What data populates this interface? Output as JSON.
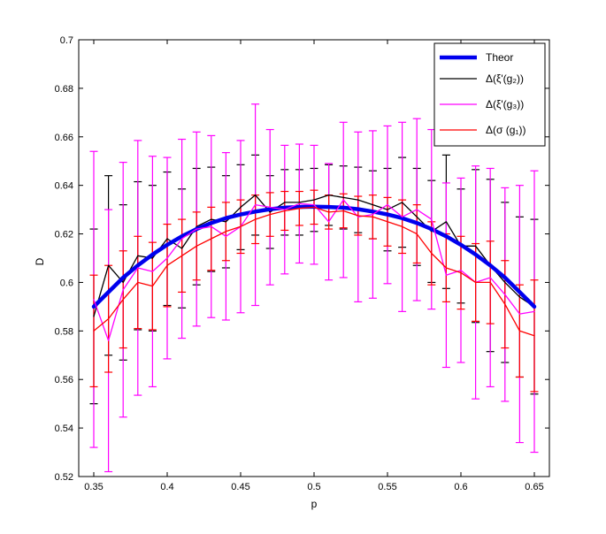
{
  "chart_data": {
    "type": "line",
    "title": "",
    "xlabel": "p",
    "ylabel": "D",
    "xlim": [
      0.35,
      0.65
    ],
    "ylim": [
      0.52,
      0.7
    ],
    "xticks": [
      0.35,
      0.4,
      0.45,
      0.5,
      0.55,
      0.6,
      0.65
    ],
    "yticks": [
      0.52,
      0.54,
      0.56,
      0.58,
      0.6,
      0.62,
      0.64,
      0.66,
      0.68,
      0.7
    ],
    "xtick_labels": [
      "0.35",
      "0.4",
      "0.45",
      "0.5",
      "0.55",
      "0.6",
      "0.65"
    ],
    "ytick_labels": [
      "0.52",
      "0.54",
      "0.56",
      "0.58",
      "0.6",
      "0.62",
      "0.64",
      "0.66",
      "0.68",
      "0.7"
    ],
    "legend_position": "top-right",
    "x": [
      0.35,
      0.36,
      0.37,
      0.38,
      0.39,
      0.4,
      0.41,
      0.42,
      0.43,
      0.44,
      0.45,
      0.46,
      0.47,
      0.48,
      0.49,
      0.5,
      0.51,
      0.52,
      0.53,
      0.54,
      0.55,
      0.56,
      0.57,
      0.58,
      0.59,
      0.6,
      0.61,
      0.62,
      0.63,
      0.64,
      0.65
    ],
    "series": [
      {
        "name": "Theor",
        "legend_label": "Theor",
        "color": "#0000ee",
        "width": 4.5,
        "values": [
          0.59,
          0.596,
          0.602,
          0.607,
          0.6115,
          0.6155,
          0.619,
          0.622,
          0.6245,
          0.6265,
          0.628,
          0.6292,
          0.6302,
          0.6308,
          0.6311,
          0.6312,
          0.6311,
          0.6308,
          0.6302,
          0.6292,
          0.628,
          0.6265,
          0.6245,
          0.622,
          0.619,
          0.6155,
          0.6115,
          0.607,
          0.602,
          0.596,
          0.59
        ]
      },
      {
        "name": "Δ(ξ'(g2))",
        "legend_label": "Δ(ξ'(g₂))",
        "color": "#000000",
        "width": 1.3,
        "values": [
          0.586,
          0.607,
          0.6,
          0.611,
          0.61,
          0.618,
          0.614,
          0.623,
          0.626,
          0.625,
          0.631,
          0.636,
          0.629,
          0.633,
          0.633,
          0.634,
          0.636,
          0.635,
          0.634,
          0.632,
          0.63,
          0.633,
          0.627,
          0.621,
          0.625,
          0.615,
          0.615,
          0.607,
          0.6,
          0.594,
          0.59
        ],
        "err": [
          0.036,
          0.037,
          0.032,
          0.0305,
          0.03,
          0.0275,
          0.0245,
          0.024,
          0.0215,
          0.019,
          0.0175,
          0.0165,
          0.015,
          0.0135,
          0.0135,
          0.013,
          0.0125,
          0.013,
          0.0135,
          0.014,
          0.017,
          0.0185,
          0.02,
          0.021,
          0.0275,
          0.0235,
          0.0315,
          0.0355,
          0.033,
          0.033,
          0.036
        ]
      },
      {
        "name": "Δ(ξ'(g3))",
        "legend_label": "Δ(ξ'(g₃))",
        "color": "#ff00ff",
        "width": 1.3,
        "values": [
          0.593,
          0.576,
          0.597,
          0.606,
          0.6045,
          0.61,
          0.618,
          0.622,
          0.623,
          0.619,
          0.623,
          0.632,
          0.631,
          0.63,
          0.6325,
          0.632,
          0.625,
          0.634,
          0.627,
          0.628,
          0.632,
          0.627,
          0.63,
          0.626,
          0.603,
          0.605,
          0.6,
          0.602,
          0.595,
          0.587,
          0.588
        ],
        "err": [
          0.061,
          0.054,
          0.0525,
          0.0525,
          0.0475,
          0.0415,
          0.041,
          0.04,
          0.0375,
          0.0345,
          0.0355,
          0.0415,
          0.032,
          0.0265,
          0.0245,
          0.0245,
          0.024,
          0.032,
          0.035,
          0.0345,
          0.0325,
          0.039,
          0.0375,
          0.037,
          0.038,
          0.038,
          0.048,
          0.045,
          0.044,
          0.053,
          0.058
        ]
      },
      {
        "name": "Δ(σ(g1))",
        "legend_label": "Δ(σ (g₁))",
        "color": "#ff0000",
        "width": 1.3,
        "values": [
          0.58,
          0.585,
          0.593,
          0.6,
          0.5985,
          0.607,
          0.611,
          0.615,
          0.618,
          0.621,
          0.623,
          0.626,
          0.628,
          0.6295,
          0.6305,
          0.631,
          0.629,
          0.6295,
          0.6275,
          0.627,
          0.625,
          0.623,
          0.62,
          0.612,
          0.606,
          0.604,
          0.6,
          0.6,
          0.591,
          0.58,
          0.578
        ],
        "err": [
          0.023,
          0.022,
          0.02,
          0.019,
          0.018,
          0.017,
          0.015,
          0.014,
          0.013,
          0.012,
          0.011,
          0.01,
          0.009,
          0.008,
          0.007,
          0.007,
          0.007,
          0.007,
          0.008,
          0.009,
          0.01,
          0.011,
          0.012,
          0.013,
          0.014,
          0.015,
          0.016,
          0.017,
          0.018,
          0.019,
          0.023
        ]
      }
    ]
  }
}
